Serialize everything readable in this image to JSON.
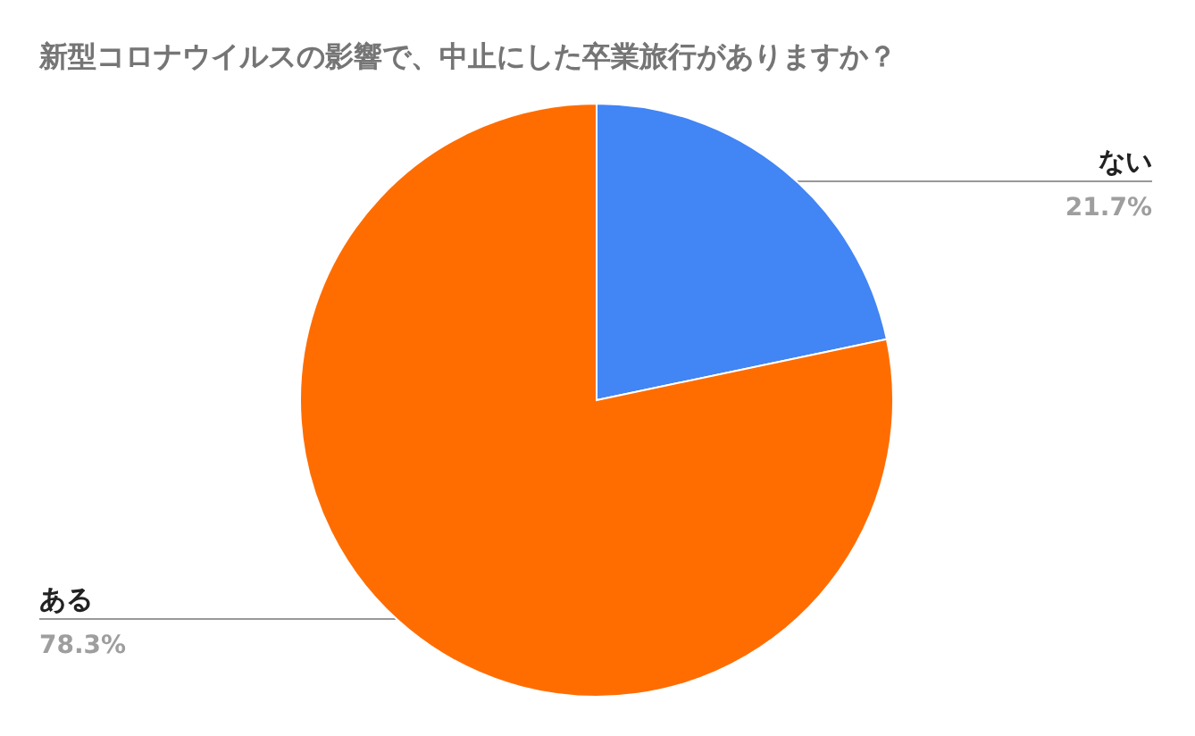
{
  "chart_data": {
    "type": "pie",
    "title": "新型コロナウイルスの影響で、中止にした卒業旅行がありますか？",
    "categories": [
      "ない",
      "ある"
    ],
    "values": [
      21.7,
      78.3
    ],
    "colors": [
      "#4285f4",
      "#ff6d01"
    ],
    "value_labels": [
      "21.7%",
      "78.3%"
    ],
    "legend": false
  }
}
